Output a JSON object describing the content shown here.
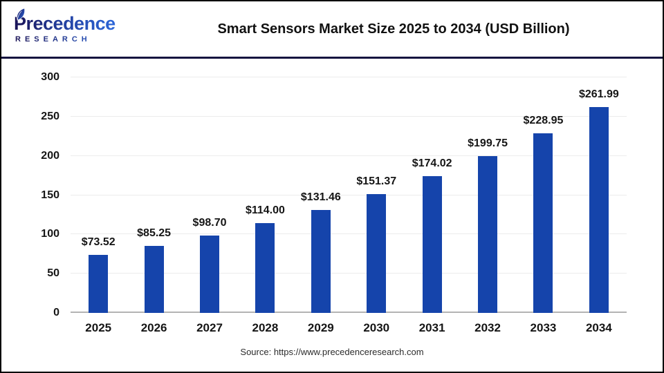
{
  "logo": {
    "name": "Precedence",
    "subtitle": "RESEARCH"
  },
  "header": {
    "title": "Smart Sensors Market Size 2025 to 2034 (USD Billion)"
  },
  "chart_data": {
    "type": "bar",
    "title": "Smart Sensors Market Size 2025 to 2034 (USD Billion)",
    "unit": "USD Billion",
    "categories": [
      "2025",
      "2026",
      "2027",
      "2028",
      "2029",
      "2030",
      "2031",
      "2032",
      "2033",
      "2034"
    ],
    "values": [
      73.52,
      85.25,
      98.7,
      114.0,
      131.46,
      151.37,
      174.02,
      199.75,
      228.95,
      261.99
    ],
    "data_labels": [
      "$73.52",
      "$85.25",
      "$98.70",
      "$114.00",
      "$131.46",
      "$151.37",
      "$174.02",
      "$199.75",
      "$228.95",
      "$261.99"
    ],
    "xlabel": "",
    "ylabel": "",
    "ylim": [
      0,
      300
    ],
    "yticks": [
      0,
      50,
      100,
      150,
      200,
      250,
      300
    ],
    "bar_color": "#1544ab",
    "grid": "horizontal",
    "legend": "none"
  },
  "footer": {
    "source": "Source: https://www.precedenceresearch.com"
  },
  "colors": {
    "divider_navy": "#15123f",
    "logo_navy": "#1b1356",
    "logo_blue": "#2e6ee3",
    "gridline": "#ececec",
    "baseline": "#b3b3b3"
  }
}
